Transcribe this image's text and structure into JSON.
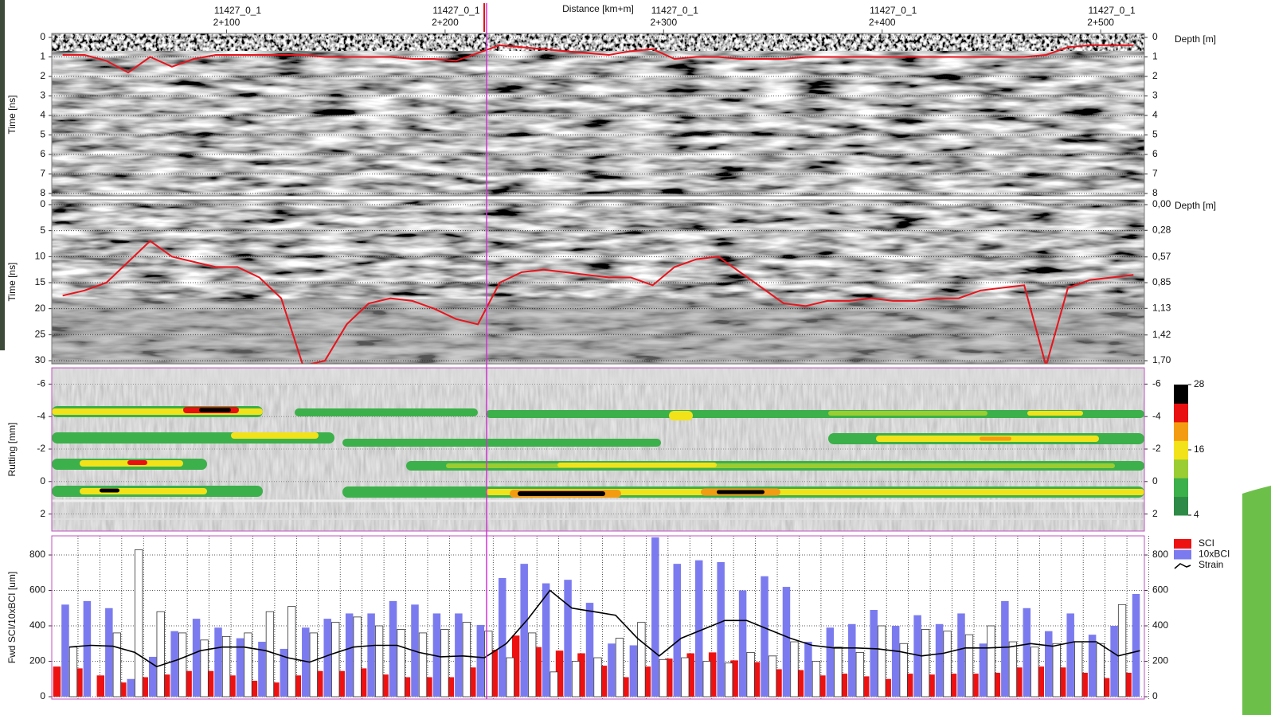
{
  "distance_axis": {
    "title": "Distance [km+m]",
    "xlim": [
      2020,
      2520
    ],
    "xticks": [
      {
        "value": 2100,
        "label": "2+100"
      },
      {
        "value": 2200,
        "label": "2+200"
      },
      {
        "value": 2300,
        "label": "2+300"
      },
      {
        "value": 2400,
        "label": "2+400"
      },
      {
        "value": 2500,
        "label": "2+500"
      }
    ],
    "section_labels": [
      "11427_0_1",
      "11427_0_1",
      "11427_0_1",
      "11427_0_1",
      "11427_0_1"
    ],
    "cursor": 2219
  },
  "chart_data": [
    {
      "type": "line",
      "ytitle": "Time [ns]",
      "y2title": "Depth [m]",
      "ylim": [
        0,
        8
      ],
      "y_inverted": true,
      "yticks": [
        0,
        1,
        2,
        3,
        4,
        5,
        6,
        7,
        8
      ],
      "y2lim": [
        0,
        8
      ],
      "y2ticks": [
        0,
        1,
        2,
        3,
        4,
        5,
        6,
        7,
        8
      ],
      "grid": true,
      "color": "#e8141c",
      "x": [
        2025,
        2035,
        2045,
        2055,
        2065,
        2075,
        2085,
        2095,
        2105,
        2115,
        2125,
        2135,
        2145,
        2155,
        2165,
        2175,
        2185,
        2195,
        2205,
        2215,
        2225,
        2235,
        2245,
        2255,
        2265,
        2275,
        2285,
        2295,
        2305,
        2315,
        2325,
        2335,
        2345,
        2355,
        2365,
        2375,
        2385,
        2395,
        2405,
        2415,
        2425,
        2435,
        2445,
        2455,
        2465,
        2475,
        2485,
        2495,
        2505,
        2515
      ],
      "values": [
        0.9,
        0.9,
        1.2,
        1.8,
        1.0,
        1.5,
        1.1,
        0.9,
        0.9,
        0.9,
        0.9,
        0.9,
        1.0,
        1.0,
        1.0,
        1.0,
        1.1,
        1.1,
        1.2,
        0.8,
        0.4,
        0.5,
        0.6,
        0.7,
        0.8,
        0.9,
        0.7,
        0.6,
        1.1,
        1.0,
        1.0,
        1.1,
        1.1,
        1.1,
        1.0,
        1.0,
        1.0,
        1.0,
        1.0,
        1.0,
        1.0,
        1.0,
        1.0,
        1.0,
        1.0,
        0.9,
        0.5,
        0.4,
        0.4,
        0.4
      ]
    },
    {
      "type": "line",
      "ytitle": "Time [ns]",
      "y2title": "Depth [m]",
      "ylim": [
        0,
        30
      ],
      "y_inverted": true,
      "yticks": [
        0,
        5,
        10,
        15,
        20,
        25,
        30
      ],
      "y2lim": [
        0,
        1.7
      ],
      "y2ticks": [
        {
          "value": 0,
          "label": "0,00"
        },
        {
          "value": 0.28,
          "label": "0,28"
        },
        {
          "value": 0.57,
          "label": "0,57"
        },
        {
          "value": 0.85,
          "label": "0,85"
        },
        {
          "value": 1.13,
          "label": "1,13"
        },
        {
          "value": 1.42,
          "label": "1,42"
        },
        {
          "value": 1.7,
          "label": "1,70"
        }
      ],
      "grid": true,
      "color": "#e8141c",
      "x": [
        2025,
        2035,
        2045,
        2055,
        2065,
        2075,
        2085,
        2095,
        2105,
        2115,
        2125,
        2135,
        2145,
        2155,
        2165,
        2175,
        2185,
        2195,
        2205,
        2215,
        2225,
        2235,
        2245,
        2255,
        2265,
        2275,
        2285,
        2295,
        2305,
        2315,
        2325,
        2335,
        2345,
        2355,
        2365,
        2375,
        2385,
        2395,
        2405,
        2415,
        2425,
        2435,
        2445,
        2455,
        2465,
        2475,
        2485,
        2495,
        2505,
        2515
      ],
      "values": [
        17.5,
        16.5,
        15,
        11,
        7,
        10,
        11,
        12,
        12,
        14,
        18,
        31,
        30,
        23,
        19,
        18,
        18.5,
        20,
        22,
        23,
        15,
        13,
        12.5,
        13,
        13.5,
        14,
        14,
        15.5,
        12,
        10.5,
        10,
        13,
        16,
        19,
        19.5,
        18.5,
        18.5,
        18,
        18.5,
        18.5,
        18,
        18,
        16.5,
        16,
        15.5,
        31,
        16,
        14.5,
        14,
        13.5
      ]
    },
    {
      "type": "contour",
      "ytitle": "Rutting [mm]",
      "ylim": [
        -7,
        3
      ],
      "y_inverted": true,
      "yticks": [
        -6,
        -4,
        -2,
        0,
        2
      ],
      "y2lim": [
        -7,
        3
      ],
      "y2ticks": [
        -6,
        -4,
        -2,
        0,
        2
      ],
      "grid": true,
      "colorbar": {
        "lim": [
          4,
          28
        ],
        "ticks": [
          28,
          16,
          4
        ],
        "colors": [
          "#2e8b47",
          "#3cb04a",
          "#9acd32",
          "#f2e21a",
          "#f39c12",
          "#e81010",
          "#000000"
        ]
      }
    },
    {
      "type": "bar",
      "ytitle": "Fwd SCI/10xBCI [um]",
      "ylim": [
        0,
        908
      ],
      "yticks": [
        0,
        200,
        400,
        600,
        800
      ],
      "y2lim": [
        0,
        908
      ],
      "y2ticks": [
        0,
        200,
        400,
        600,
        800
      ],
      "grid": true,
      "x": [
        2028,
        2038,
        2048,
        2058,
        2068,
        2078,
        2088,
        2098,
        2108,
        2118,
        2128,
        2138,
        2148,
        2158,
        2168,
        2178,
        2188,
        2198,
        2208,
        2218,
        2228,
        2238,
        2248,
        2258,
        2268,
        2278,
        2288,
        2298,
        2308,
        2318,
        2328,
        2338,
        2348,
        2358,
        2368,
        2378,
        2388,
        2398,
        2408,
        2418,
        2428,
        2438,
        2448,
        2458,
        2468,
        2478,
        2488,
        2498,
        2508,
        2518
      ],
      "series": [
        {
          "name": "SCI",
          "color": "#ee1111",
          "values": [
            170,
            160,
            120,
            80,
            110,
            125,
            145,
            145,
            120,
            90,
            80,
            120,
            145,
            145,
            160,
            125,
            110,
            110,
            110,
            165,
            265,
            345,
            280,
            260,
            245,
            175,
            110,
            170,
            215,
            245,
            250,
            205,
            195,
            155,
            150,
            120,
            130,
            115,
            100,
            130,
            125,
            130,
            130,
            135,
            165,
            170,
            165,
            135,
            105,
            135
          ]
        },
        {
          "name": "10xBCI",
          "color": "#7b7bef",
          "values": [
            520,
            540,
            500,
            100,
            225,
            370,
            440,
            390,
            330,
            310,
            270,
            390,
            440,
            470,
            470,
            540,
            520,
            470,
            470,
            405,
            670,
            750,
            640,
            660,
            530,
            300,
            290,
            900,
            750,
            770,
            760,
            600,
            680,
            620,
            310,
            390,
            410,
            490,
            400,
            460,
            410,
            470,
            300,
            540,
            500,
            370,
            470,
            350,
            400,
            580
          ]
        },
        {
          "color": "#ffffff",
          "values": [
            280,
            null,
            360,
            830,
            480,
            360,
            320,
            340,
            360,
            480,
            510,
            360,
            420,
            450,
            400,
            380,
            360,
            380,
            420,
            370,
            220,
            360,
            140,
            200,
            220,
            330,
            420,
            210,
            220,
            200,
            190,
            250,
            230,
            310,
            200,
            280,
            250,
            400,
            300,
            380,
            370,
            350,
            400,
            310,
            280,
            300,
            310,
            300,
            520,
            null
          ]
        },
        {
          "name": "Strain",
          "color": "#000000",
          "type": "line",
          "values": [
            280,
            290,
            285,
            250,
            170,
            210,
            260,
            280,
            280,
            260,
            220,
            195,
            240,
            280,
            290,
            290,
            250,
            225,
            230,
            220,
            300,
            440,
            600,
            500,
            480,
            460,
            330,
            230,
            330,
            380,
            430,
            430,
            380,
            330,
            290,
            275,
            275,
            270,
            255,
            230,
            245,
            275,
            275,
            280,
            300,
            285,
            310,
            310,
            230,
            260
          ]
        }
      ]
    }
  ]
}
